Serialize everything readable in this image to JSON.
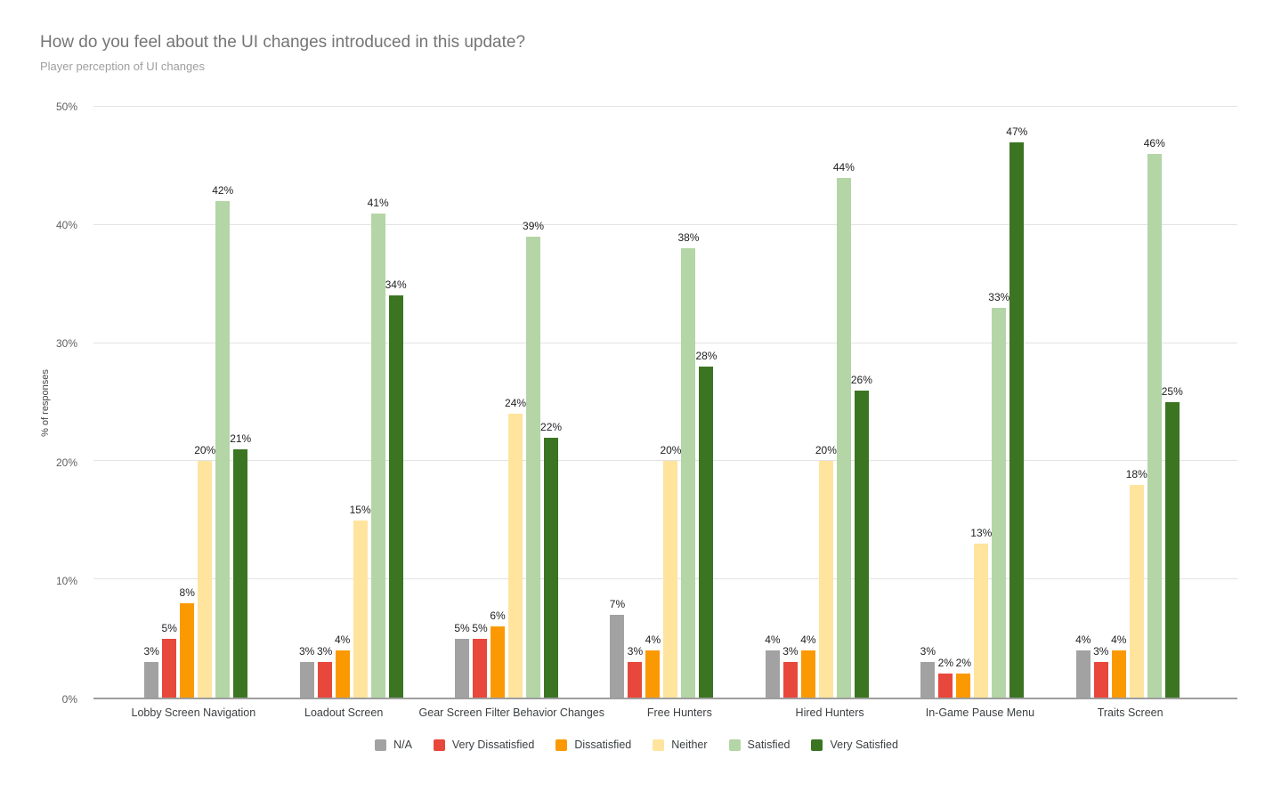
{
  "chart_data": {
    "type": "bar",
    "title": "How do you feel about the UI changes introduced in this update?",
    "subtitle": "Player perception of UI changes",
    "ylabel": "% of responses",
    "xlabel": "",
    "ylim": [
      0,
      50
    ],
    "ytick_step": 10,
    "ytick_labels": [
      "0%",
      "10%",
      "20%",
      "30%",
      "40%",
      "50%"
    ],
    "value_suffix": "%",
    "grid": true,
    "legend_position": "bottom",
    "categories": [
      "Lobby Screen Navigation",
      "Loadout Screen",
      "Gear Screen Filter Behavior Changes",
      "Free Hunters",
      "Hired Hunters",
      "In-Game Pause Menu",
      "Traits Screen"
    ],
    "series": [
      {
        "name": "N/A",
        "color": "#a2a2a2",
        "values": [
          3,
          3,
          5,
          7,
          4,
          3,
          4
        ]
      },
      {
        "name": "Very Dissatisfied",
        "color": "#e8473c",
        "values": [
          5,
          3,
          5,
          3,
          3,
          2,
          3
        ]
      },
      {
        "name": "Dissatisfied",
        "color": "#fb9903",
        "values": [
          8,
          4,
          6,
          4,
          4,
          2,
          4
        ]
      },
      {
        "name": "Neither",
        "color": "#ffe49d",
        "values": [
          20,
          15,
          24,
          20,
          20,
          13,
          18
        ]
      },
      {
        "name": "Satisfied",
        "color": "#b4d5a6",
        "values": [
          42,
          41,
          39,
          38,
          44,
          33,
          46
        ]
      },
      {
        "name": "Very Satisfied",
        "color": "#3b7522",
        "values": [
          21,
          34,
          22,
          28,
          26,
          47,
          25
        ]
      }
    ]
  }
}
